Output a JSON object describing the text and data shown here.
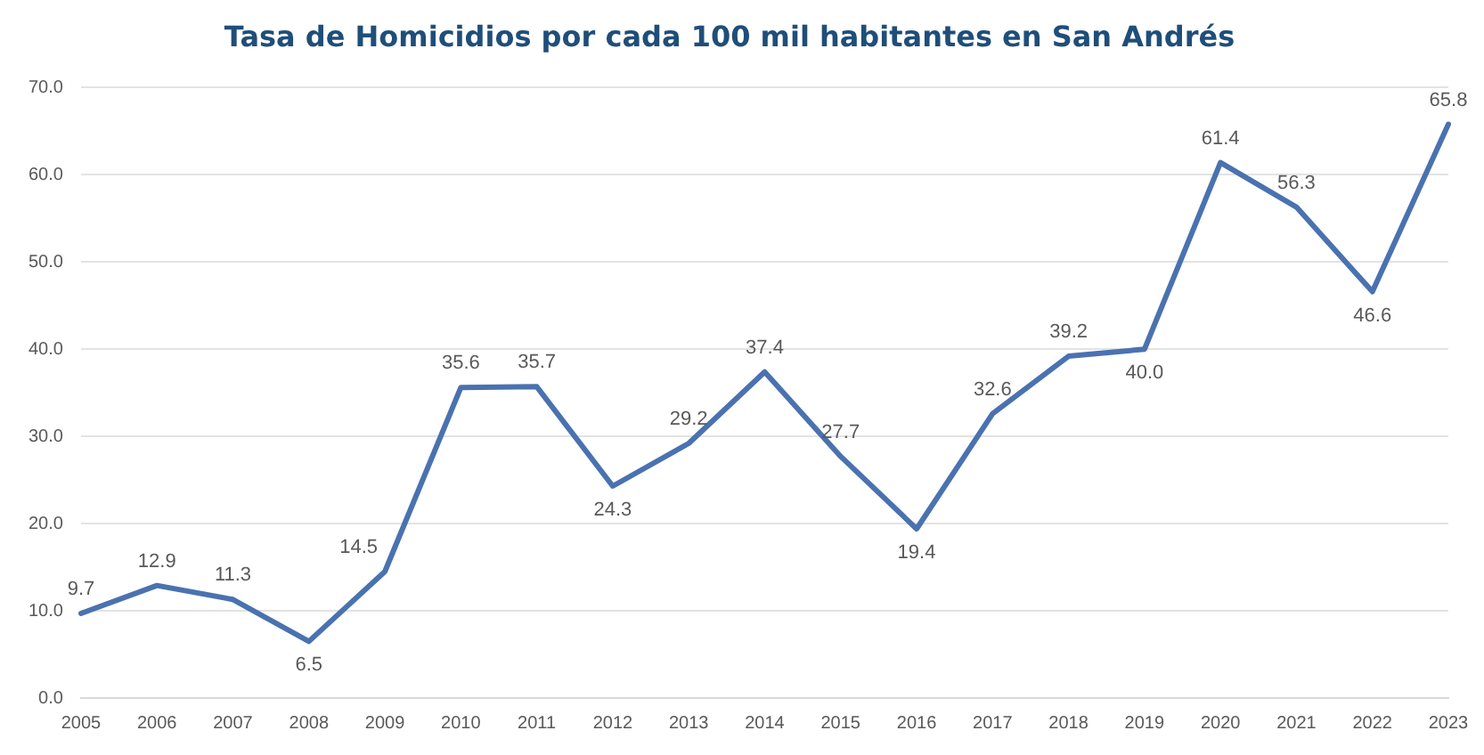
{
  "chart_data": {
    "type": "line",
    "title": "Tasa de Homicidios por cada 100 mil habitantes en San Andrés",
    "categories": [
      "2005",
      "2006",
      "2007",
      "2008",
      "2009",
      "2010",
      "2011",
      "2012",
      "2013",
      "2014",
      "2015",
      "2016",
      "2017",
      "2018",
      "2019",
      "2020",
      "2021",
      "2022",
      "2023"
    ],
    "series": [
      {
        "color": "#4a72b0",
        "values": [
          9.7,
          12.9,
          11.3,
          6.5,
          14.5,
          35.6,
          35.7,
          24.3,
          29.2,
          37.4,
          27.7,
          19.4,
          32.6,
          39.2,
          40.0,
          61.4,
          56.3,
          46.6,
          65.8
        ],
        "value_labels": [
          "9.7",
          "12.9",
          "11.3",
          "6.5",
          "14.5",
          "35.6",
          "35.7",
          "24.3",
          "29.2",
          "37.4",
          "27.7",
          "19.4",
          "32.6",
          "39.2",
          "40.0",
          "61.4",
          "56.3",
          "46.6",
          "65.8"
        ]
      }
    ],
    "ylim": [
      0,
      70
    ],
    "yticks": [
      {
        "value": 0,
        "label": "0.0"
      },
      {
        "value": 10,
        "label": "10.0"
      },
      {
        "value": 20,
        "label": "20.0"
      },
      {
        "value": 30,
        "label": "30.0"
      },
      {
        "value": 40,
        "label": "40.0"
      },
      {
        "value": 50,
        "label": "50.0"
      },
      {
        "value": 60,
        "label": "60.0"
      },
      {
        "value": 70,
        "label": "70.0"
      }
    ],
    "grid": "y",
    "legend": false,
    "marker": "none",
    "line_style": "solid"
  }
}
